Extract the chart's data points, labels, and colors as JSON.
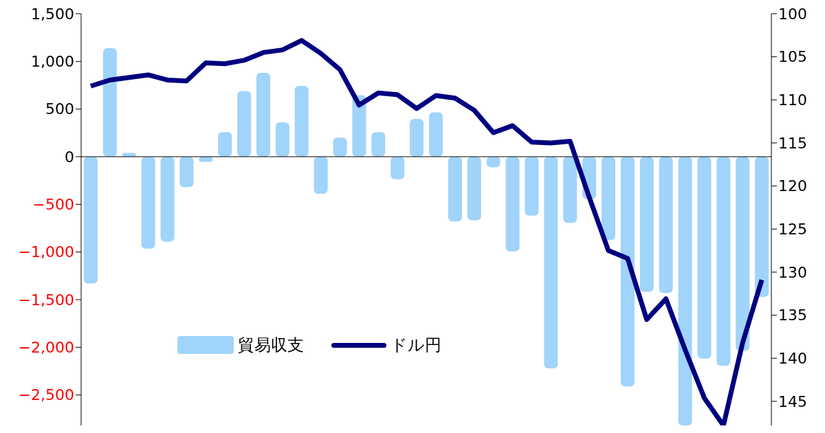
{
  "chart_data": {
    "type": "bar",
    "categories": [
      null,
      null,
      null,
      null,
      null,
      null,
      null,
      null,
      null,
      null,
      null,
      null,
      null,
      null,
      null,
      null,
      null,
      null,
      null,
      null,
      null,
      null,
      null,
      null,
      null,
      null,
      null,
      null,
      null,
      null,
      null,
      null,
      null,
      null,
      null,
      null
    ],
    "series": [
      {
        "name": "貿易収支",
        "color": "#a0d4fa",
        "values": [
          -1330,
          1140,
          40,
          -965,
          -890,
          -320,
          -55,
          257,
          688,
          880,
          360,
          743,
          -390,
          200,
          645,
          257,
          -236,
          396,
          465,
          -680,
          -667,
          -111,
          -993,
          -618,
          -2222,
          -694,
          -444,
          -875,
          -2410,
          -1417,
          -1430,
          -2820,
          -2118,
          -2194,
          -2035,
          -1472
        ]
      },
      {
        "name": "ドル円",
        "type": "line",
        "axis": "y2",
        "color": "#000080",
        "values": [
          108.4,
          107.7,
          107.4,
          107.1,
          107.7,
          107.8,
          105.7,
          105.8,
          105.4,
          104.5,
          104.2,
          103.1,
          104.6,
          106.5,
          110.6,
          109.2,
          109.4,
          111.0,
          109.5,
          109.8,
          111.2,
          113.8,
          113.0,
          114.9,
          115.0,
          114.8,
          121.3,
          127.5,
          128.4,
          135.5,
          133.1,
          139.0,
          144.6,
          147.8,
          138.2,
          130.9
        ]
      }
    ],
    "ylim": [
      -2820,
      1500
    ],
    "yticks": [
      {
        "value": 1500,
        "label": "1,500"
      },
      {
        "value": 1000,
        "label": "1,000"
      },
      500,
      0,
      {
        "value": -500,
        "label": "−500"
      },
      {
        "value": -1000,
        "label": "−1,000"
      },
      {
        "value": -1500,
        "label": "−1,500"
      },
      {
        "value": -2000,
        "label": "−2,000"
      },
      {
        "value": -2500,
        "label": "−2,500"
      }
    ],
    "y2lim": [
      147.8,
      100
    ],
    "y2ticks": [
      100,
      105,
      110,
      115,
      120,
      125,
      130,
      135,
      140,
      145
    ],
    "tick_labels": "y",
    "legend": "bottom left"
  }
}
